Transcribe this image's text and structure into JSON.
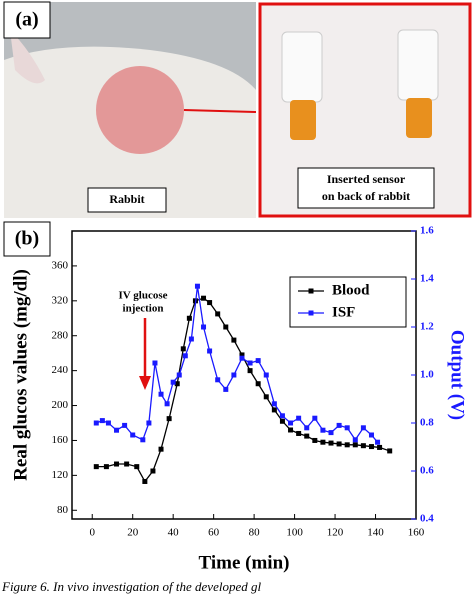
{
  "panel_a": {
    "label": "(a)",
    "left_caption": "Rabbit",
    "right_caption": [
      "Inserted sensor",
      "on back of rabbit"
    ]
  },
  "chart_data": {
    "type": "line",
    "panel_label": "(b)",
    "xlabel": "Time (min)",
    "ylabel": "Real glucos values (mg/dl)",
    "y2label": "Output (V)",
    "annotation": [
      "IV glucose",
      "injection"
    ],
    "xlim": [
      -10,
      160
    ],
    "xticks": [
      0,
      20,
      40,
      60,
      80,
      100,
      120,
      140,
      160
    ],
    "ylim": [
      70,
      400
    ],
    "yticks": [
      80,
      120,
      160,
      200,
      240,
      280,
      320,
      360
    ],
    "y2lim": [
      0.4,
      1.6
    ],
    "y2ticks": [
      0.4,
      0.6,
      0.8,
      {
        "value": 1,
        "label": "1.0"
      },
      1.2,
      1.4,
      1.6
    ],
    "legend": "upper right",
    "series": [
      {
        "name": "Blood",
        "color": "#000000",
        "x": [
          2,
          7,
          12,
          17,
          22,
          26,
          30,
          34,
          38,
          42,
          45,
          48,
          51,
          55,
          58,
          62,
          66,
          70,
          74,
          78,
          82,
          86,
          90,
          94,
          98,
          102,
          106,
          110,
          114,
          118,
          122,
          126,
          130,
          134,
          138,
          142,
          147
        ],
        "values": [
          130,
          130,
          133,
          133,
          130,
          113,
          125,
          150,
          185,
          225,
          265,
          300,
          320,
          323,
          318,
          305,
          290,
          275,
          258,
          240,
          225,
          210,
          195,
          182,
          172,
          168,
          165,
          160,
          158,
          157,
          156,
          155,
          155,
          154,
          153,
          152,
          148
        ]
      },
      {
        "name": "ISF",
        "color": "#1a1aff",
        "axis": "y2",
        "x": [
          2,
          5,
          8,
          12,
          16,
          20,
          25,
          28,
          31,
          34,
          37,
          40,
          43,
          46,
          49,
          52,
          55,
          58,
          62,
          66,
          70,
          74,
          78,
          82,
          86,
          90,
          94,
          98,
          102,
          106,
          110,
          114,
          118,
          122,
          126,
          130,
          134,
          138,
          141
        ],
        "values": [
          0.8,
          0.81,
          0.8,
          0.77,
          0.79,
          0.75,
          0.73,
          0.8,
          1.05,
          0.92,
          0.88,
          0.97,
          1.0,
          1.08,
          1.15,
          1.37,
          1.2,
          1.1,
          0.98,
          0.94,
          1.0,
          1.07,
          1.05,
          1.06,
          1.0,
          0.88,
          0.83,
          0.8,
          0.82,
          0.78,
          0.82,
          0.77,
          0.76,
          0.79,
          0.78,
          0.73,
          0.78,
          0.75,
          0.72
        ]
      }
    ]
  },
  "caption": "Figure 6. In vivo investigation of the developed gl"
}
